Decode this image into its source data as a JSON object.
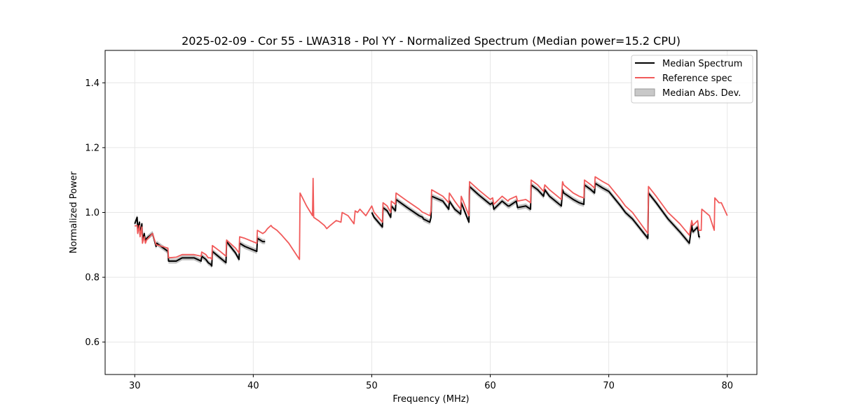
{
  "chart_data": {
    "type": "line",
    "title": "2025-02-09 - Cor 55 - LWA318 - Pol YY - Normalized Spectrum (Median power=15.2 CPU)",
    "xlabel": "Frequency (MHz)",
    "ylabel": "Normalized Power",
    "xlim": [
      27.5,
      82.5
    ],
    "ylim": [
      0.5,
      1.5
    ],
    "xticks": [
      30,
      40,
      50,
      60,
      70,
      80
    ],
    "yticks": [
      0.6,
      0.8,
      1.0,
      1.2,
      1.4
    ],
    "grid": true,
    "legend_position": "top-right",
    "colors": {
      "median": "#000000",
      "reference": "#f15a5a",
      "mad": "#bdbdbd"
    },
    "series": [
      {
        "name": "Median Spectrum",
        "x": [
          30.0,
          30.2,
          30.25,
          30.4,
          30.45,
          30.6,
          30.65,
          30.8,
          30.9,
          31.0,
          31.5,
          31.8,
          31.85,
          32.8,
          32.85,
          33.5,
          34.0,
          35.0,
          35.6,
          35.65,
          36.0,
          36.2,
          36.4,
          36.5,
          36.55,
          37.2,
          37.7,
          37.75,
          38.5,
          38.8,
          38.85,
          39.3,
          40.3,
          40.35,
          40.8,
          41.0
        ],
        "y": [
          0.965,
          0.985,
          0.95,
          0.97,
          0.93,
          0.965,
          0.915,
          0.935,
          0.91,
          0.92,
          0.935,
          0.895,
          0.905,
          0.88,
          0.85,
          0.85,
          0.86,
          0.86,
          0.85,
          0.865,
          0.855,
          0.845,
          0.84,
          0.835,
          0.88,
          0.86,
          0.845,
          0.91,
          0.875,
          0.855,
          0.905,
          0.895,
          0.88,
          0.92,
          0.91,
          0.91
        ]
      },
      {
        "name": "Median Spectrum",
        "x": [
          50.0,
          50.2,
          50.9,
          50.95,
          51.3,
          51.6,
          51.65,
          52.0,
          52.05,
          53.0,
          54.0,
          54.3,
          54.35,
          54.9,
          55.0,
          55.05,
          56.0,
          56.5,
          56.55,
          57.0,
          57.5,
          57.55,
          58.2,
          58.25,
          59.0,
          60.0,
          60.2,
          60.3,
          61.0,
          61.5,
          61.6,
          62.2,
          62.3,
          63.0,
          63.4,
          63.45,
          64.0,
          64.5,
          64.6,
          65.0,
          66.0,
          66.1,
          66.2,
          67.0,
          67.5,
          67.9,
          67.95,
          68.5,
          68.8,
          68.85,
          69.5,
          70.0,
          71.0,
          71.4,
          72.0,
          73.3,
          73.35,
          74.0,
          75.0,
          76.0,
          76.8,
          77.0,
          77.1,
          77.5,
          77.6,
          77.7
        ],
        "y": [
          1.0,
          0.985,
          0.955,
          1.015,
          1.005,
          0.985,
          1.02,
          1.005,
          1.04,
          1.015,
          0.99,
          0.985,
          0.98,
          0.97,
          0.985,
          1.05,
          1.035,
          1.01,
          1.035,
          1.01,
          0.995,
          1.03,
          0.97,
          1.08,
          1.055,
          1.025,
          1.03,
          1.01,
          1.035,
          1.02,
          1.02,
          1.035,
          1.015,
          1.02,
          1.01,
          1.085,
          1.07,
          1.05,
          1.07,
          1.05,
          1.02,
          1.07,
          1.06,
          1.04,
          1.03,
          1.025,
          1.085,
          1.07,
          1.06,
          1.09,
          1.075,
          1.065,
          1.02,
          1.0,
          0.98,
          0.92,
          1.06,
          1.03,
          0.98,
          0.94,
          0.905,
          0.96,
          0.94,
          0.955,
          0.925,
          0.925
        ]
      },
      {
        "name": "Reference spec",
        "x": [
          30.0,
          30.2,
          30.25,
          30.4,
          30.45,
          30.6,
          30.65,
          30.8,
          30.9,
          31.0,
          31.5,
          31.8,
          31.85,
          32.8,
          32.85,
          33.5,
          34.0,
          35.0,
          35.6,
          35.65,
          36.0,
          36.2,
          36.4,
          36.5,
          36.55,
          37.2,
          37.7,
          37.75,
          38.5,
          38.8,
          38.85,
          39.3,
          40.3,
          40.35,
          40.8,
          41.0,
          41.2,
          41.5,
          41.6,
          42.0,
          42.4,
          43.0,
          43.9,
          43.95,
          44.5,
          45.0,
          45.05,
          45.1,
          45.5,
          46.0,
          46.2,
          46.5,
          47.0,
          47.4,
          47.5,
          48.0,
          48.5,
          48.6,
          48.8,
          49.0,
          49.5,
          50.0,
          50.2,
          50.9,
          50.95,
          51.3,
          51.6,
          51.65,
          52.0,
          52.05,
          53.0,
          54.0,
          54.3,
          54.35,
          54.9,
          55.0,
          55.05,
          56.0,
          56.5,
          56.55,
          57.0,
          57.5,
          57.55,
          58.2,
          58.25,
          59.0,
          60.0,
          60.2,
          60.3,
          61.0,
          61.5,
          61.6,
          62.2,
          62.3,
          63.0,
          63.4,
          63.45,
          64.0,
          64.5,
          64.6,
          65.0,
          66.0,
          66.1,
          66.2,
          67.0,
          67.5,
          67.9,
          67.95,
          68.5,
          68.8,
          68.85,
          69.5,
          70.0,
          71.0,
          71.4,
          72.0,
          73.3,
          73.35,
          74.0,
          75.0,
          76.0,
          76.8,
          77.0,
          77.1,
          77.5,
          77.6,
          77.7,
          77.8,
          77.85,
          78.5,
          78.9,
          78.95,
          79.3,
          79.5,
          80.0
        ],
        "y": [
          0.958,
          0.96,
          0.935,
          0.96,
          0.925,
          0.955,
          0.905,
          0.925,
          0.905,
          0.915,
          0.935,
          0.9,
          0.9,
          0.89,
          0.86,
          0.862,
          0.87,
          0.87,
          0.865,
          0.878,
          0.87,
          0.86,
          0.86,
          0.855,
          0.898,
          0.88,
          0.865,
          0.915,
          0.89,
          0.875,
          0.925,
          0.92,
          0.905,
          0.945,
          0.935,
          0.94,
          0.95,
          0.96,
          0.955,
          0.945,
          0.93,
          0.905,
          0.855,
          1.06,
          1.02,
          0.99,
          1.105,
          0.985,
          0.975,
          0.96,
          0.95,
          0.96,
          0.975,
          0.97,
          1.0,
          0.99,
          0.965,
          1.005,
          1.0,
          1.01,
          0.99,
          1.02,
          1.0,
          0.97,
          1.03,
          1.02,
          1.0,
          1.035,
          1.025,
          1.06,
          1.035,
          1.01,
          1.0,
          1.0,
          0.99,
          1.005,
          1.07,
          1.05,
          1.03,
          1.06,
          1.035,
          1.01,
          1.05,
          0.99,
          1.095,
          1.07,
          1.04,
          1.045,
          1.025,
          1.05,
          1.035,
          1.04,
          1.05,
          1.035,
          1.04,
          1.03,
          1.1,
          1.085,
          1.065,
          1.085,
          1.07,
          1.04,
          1.095,
          1.085,
          1.06,
          1.05,
          1.045,
          1.1,
          1.085,
          1.075,
          1.11,
          1.095,
          1.085,
          1.04,
          1.02,
          1.0,
          0.935,
          1.08,
          1.05,
          1.0,
          0.965,
          0.93,
          0.975,
          0.96,
          0.975,
          0.945,
          0.945,
          0.945,
          1.01,
          0.99,
          0.945,
          1.045,
          1.03,
          1.03,
          0.99
        ]
      }
    ],
    "mad_band": {
      "name": "Median Abs. Dev.",
      "half_width": 0.008
    },
    "legend": [
      "Median Spectrum",
      "Reference spec",
      "Median Abs. Dev."
    ]
  }
}
